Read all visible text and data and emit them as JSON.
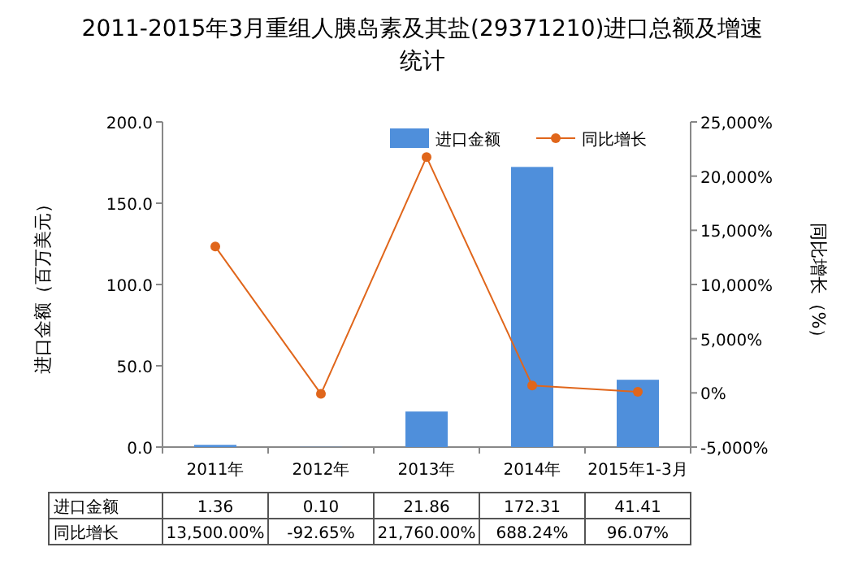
{
  "chart_data": {
    "type": "bar",
    "title": "2011-2015年3月重组人胰岛素及其盐(29371210)进口总额及增速统计",
    "ylabel": "进口金额（百万美元）",
    "y2label": "同比增长（%）",
    "categories": [
      "2011年",
      "2012年",
      "2013年",
      "2014年",
      "2015年1-3月"
    ],
    "series": [
      {
        "name": "进口金额",
        "color": "#4f8fdb",
        "values": [
          1.36,
          0.1,
          21.86,
          172.31,
          41.41
        ],
        "value_labels": [
          "1.36",
          "0.10",
          "21.86",
          "172.31",
          "41.41"
        ]
      },
      {
        "name": "同比增长",
        "type": "line",
        "axis": "y2",
        "color": "#e0661b",
        "marker": "circle",
        "values": [
          13500.0,
          -92.65,
          21760.0,
          688.24,
          96.07
        ],
        "value_labels": [
          "13,500.00%",
          "-92.65%",
          "21,760.00%",
          "688.24%",
          "96.07%"
        ]
      }
    ],
    "ylim": [
      0,
      200
    ],
    "yticks": [
      {
        "value": 0,
        "label": "0.0"
      },
      {
        "value": 50,
        "label": "50.0"
      },
      {
        "value": 100,
        "label": "100.0"
      },
      {
        "value": 150,
        "label": "150.0"
      },
      {
        "value": 200,
        "label": "200.0"
      }
    ],
    "y2lim": [
      -5000,
      25000
    ],
    "y2ticks": [
      {
        "value": -5000,
        "label": "-5,000%"
      },
      {
        "value": 0,
        "label": "0%"
      },
      {
        "value": 5000,
        "label": "5,000%"
      },
      {
        "value": 10000,
        "label": "10,000%"
      },
      {
        "value": 15000,
        "label": "15,000%"
      },
      {
        "value": 20000,
        "label": "20,000%"
      },
      {
        "value": 25000,
        "label": "25,000%"
      }
    ],
    "legend": "top right",
    "grid": false
  }
}
